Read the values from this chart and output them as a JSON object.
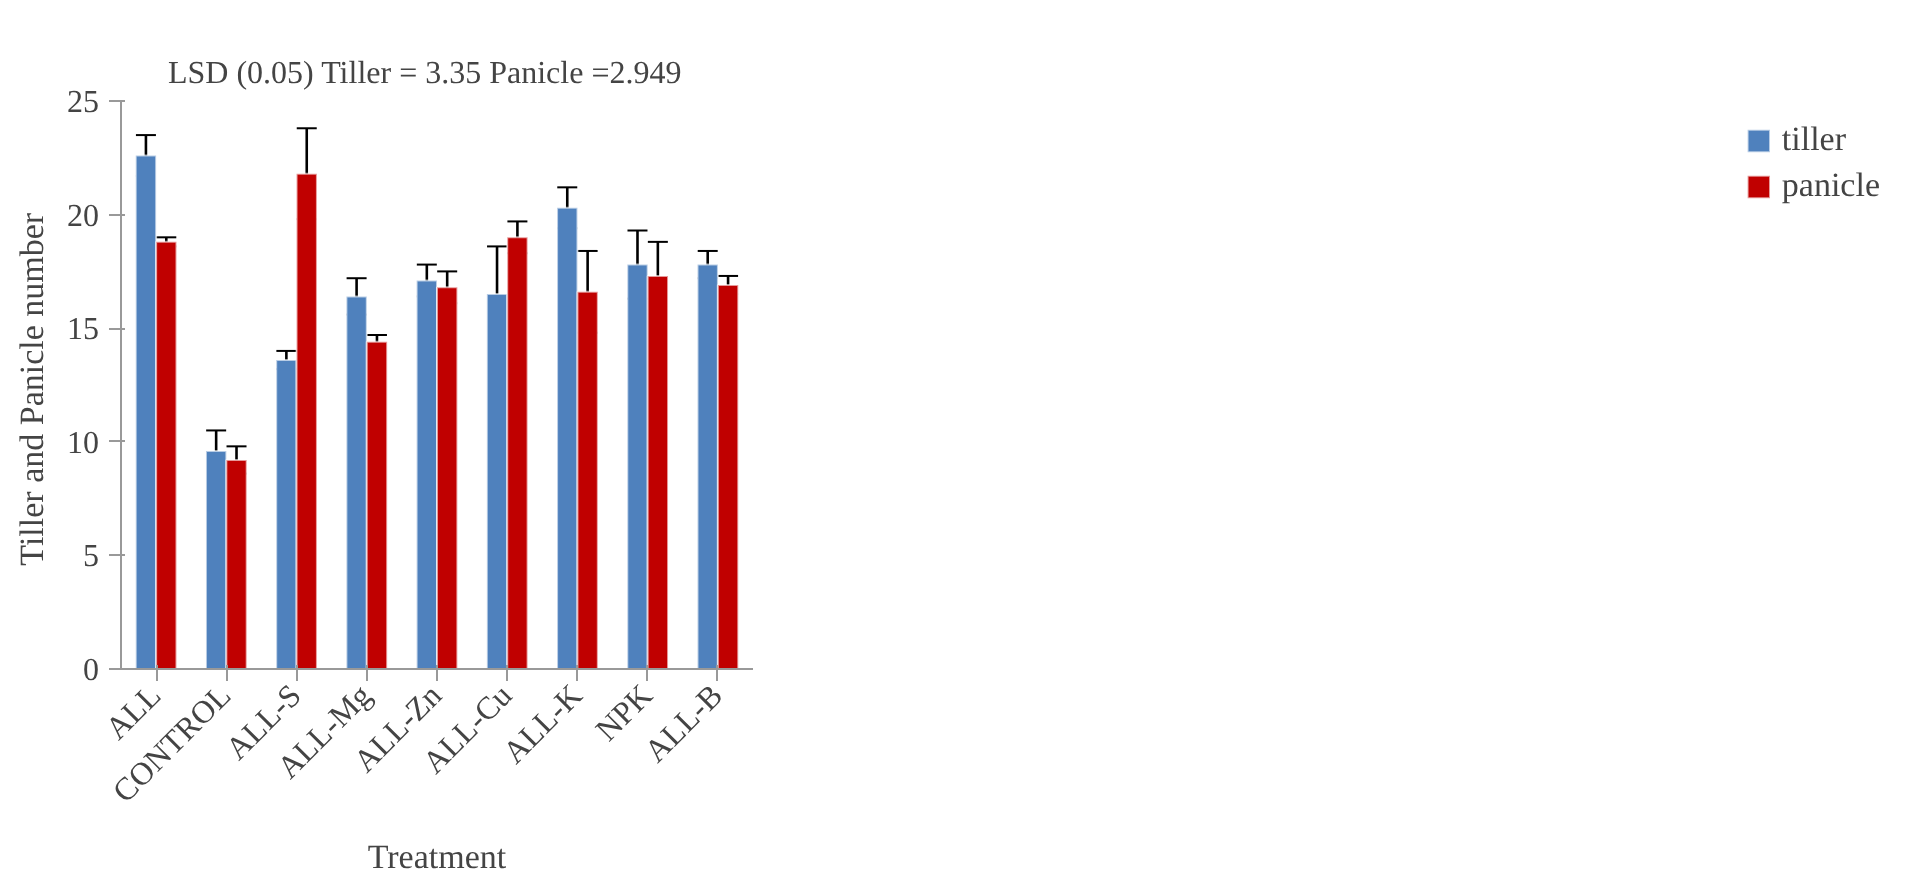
{
  "chart_data": {
    "type": "bar",
    "title": "LSD (0.05)  Tiller  = 3.35  Panicle =2.949",
    "xlabel": "Treatment",
    "ylabel": "Tiller  and Panicle number",
    "categories": [
      "ALL",
      "CONTROL",
      "ALL-S",
      "ALL-Mg",
      "ALL-Zn",
      "ALL-Cu",
      "ALL-K",
      "NPK",
      "ALL-B"
    ],
    "series": [
      {
        "name": "tiller",
        "color": "#4f81bd",
        "values": [
          22.6,
          9.6,
          13.6,
          16.4,
          17.1,
          16.5,
          20.3,
          17.8,
          17.8
        ],
        "errors": [
          0.9,
          0.9,
          0.4,
          0.8,
          0.7,
          2.1,
          0.9,
          1.5,
          0.6
        ]
      },
      {
        "name": "panicle",
        "color": "#c00000",
        "values": [
          18.8,
          9.2,
          21.8,
          14.4,
          16.8,
          19.0,
          16.6,
          17.3,
          16.9
        ],
        "errors": [
          0.2,
          0.6,
          2.0,
          0.3,
          0.7,
          0.7,
          1.8,
          1.5,
          0.4
        ]
      }
    ],
    "ylim": [
      0,
      25
    ],
    "yticks": [
      0,
      5,
      10,
      15,
      20,
      25
    ],
    "grid": false,
    "legend": "right"
  }
}
